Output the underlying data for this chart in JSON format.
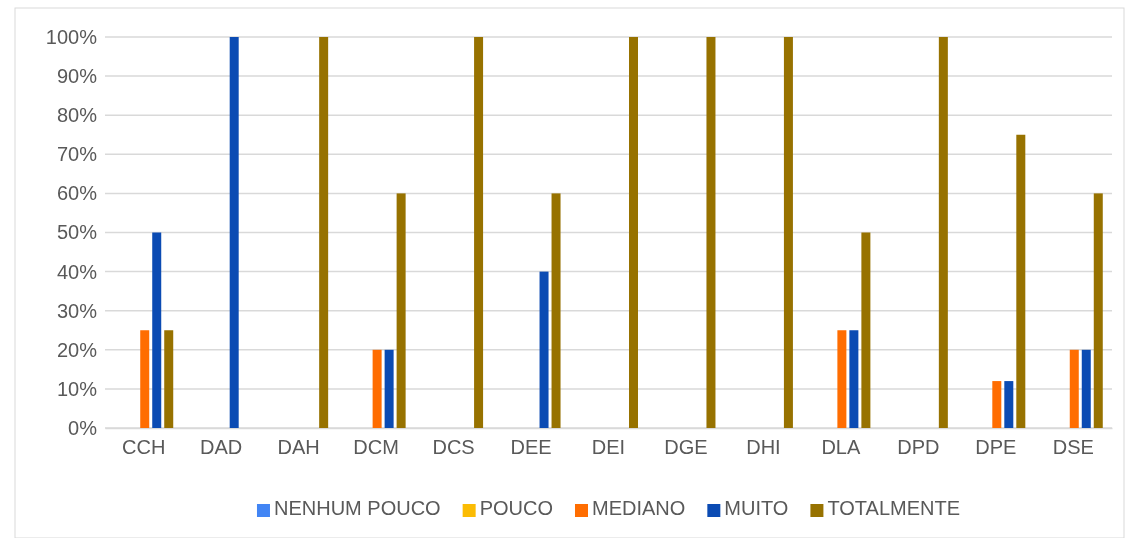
{
  "chart_data": {
    "type": "bar",
    "categories": [
      "CCH",
      "DAD",
      "DAH",
      "DCM",
      "DCS",
      "DEE",
      "DEI",
      "DGE",
      "DHI",
      "DLA",
      "DPD",
      "DPE",
      "DSE"
    ],
    "series": [
      {
        "name": "NENHUM POUCO",
        "color": "#4285f4",
        "values": [
          null,
          null,
          null,
          null,
          null,
          null,
          null,
          null,
          null,
          null,
          null,
          null,
          null
        ]
      },
      {
        "name": "POUCO",
        "color": "#fbbc04",
        "values": [
          null,
          null,
          null,
          null,
          null,
          null,
          null,
          null,
          null,
          null,
          null,
          null,
          null
        ]
      },
      {
        "name": "MEDIANO",
        "color": "#ff6d01",
        "values": [
          25,
          null,
          null,
          20,
          null,
          null,
          null,
          null,
          null,
          25,
          null,
          12,
          20
        ]
      },
      {
        "name": "MUITO",
        "color": "#0b4bb3",
        "values": [
          50,
          100,
          null,
          20,
          null,
          40,
          null,
          null,
          null,
          25,
          null,
          12,
          20
        ]
      },
      {
        "name": "TOTALMENTE",
        "color": "#977200",
        "values": [
          25,
          null,
          100,
          60,
          100,
          60,
          100,
          100,
          100,
          50,
          100,
          75,
          60
        ]
      }
    ],
    "ylim": [
      0,
      100
    ],
    "yticks": [
      {
        "value": 0,
        "label": "0%"
      },
      {
        "value": 10,
        "label": "10%"
      },
      {
        "value": 20,
        "label": "20%"
      },
      {
        "value": 30,
        "label": "30%"
      },
      {
        "value": 40,
        "label": "40%"
      },
      {
        "value": 50,
        "label": "50%"
      },
      {
        "value": 60,
        "label": "60%"
      },
      {
        "value": 70,
        "label": "70%"
      },
      {
        "value": 80,
        "label": "80%"
      },
      {
        "value": 90,
        "label": "90%"
      },
      {
        "value": 100,
        "label": "100%"
      }
    ],
    "grid": "y",
    "legend": "bottom"
  }
}
